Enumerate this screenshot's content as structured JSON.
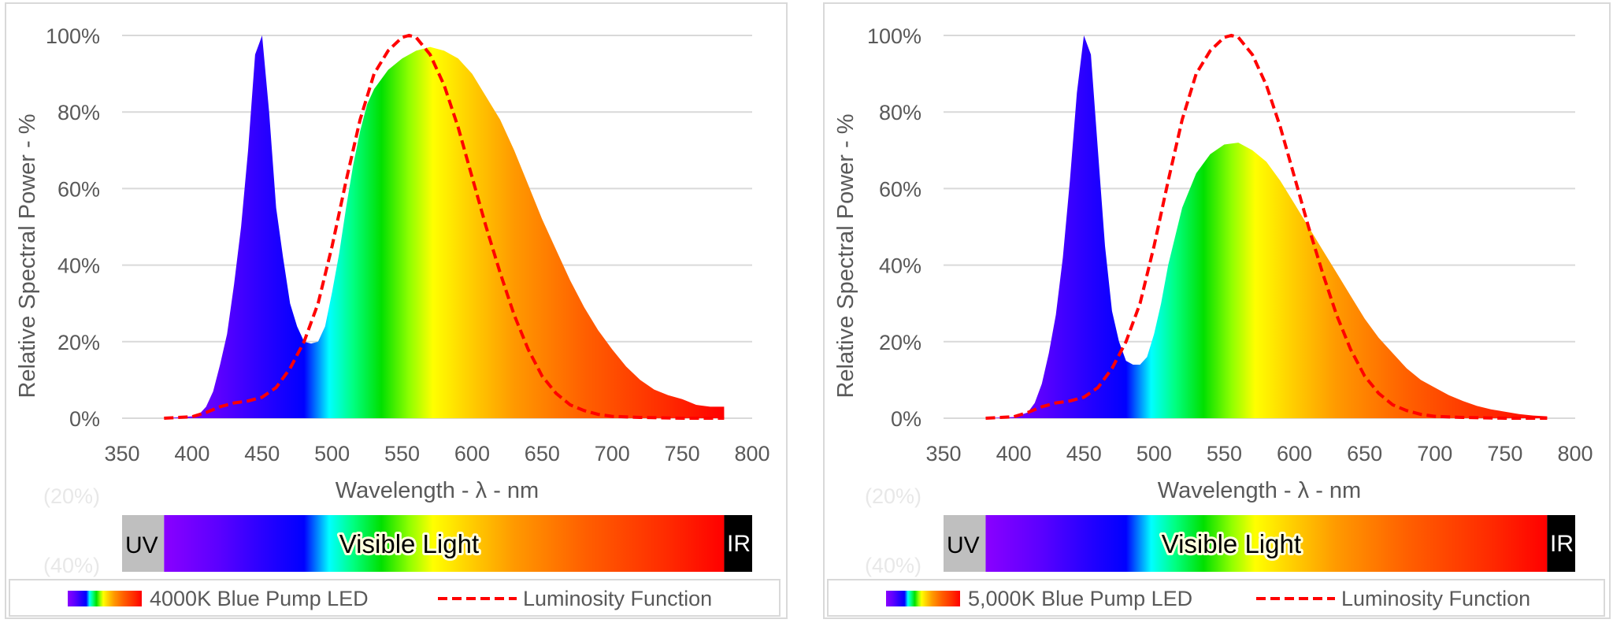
{
  "chart_data": [
    {
      "type": "area",
      "ylabel": "Relative Spectral Power - %",
      "xlabel": "Wavelength - λ - nm",
      "xlim": [
        350,
        800
      ],
      "ylim": [
        0,
        100
      ],
      "xticks": [
        "350",
        "400",
        "450",
        "500",
        "550",
        "600",
        "650",
        "700",
        "750",
        "800"
      ],
      "yticks": [
        "0%",
        "20%",
        "40%",
        "60%",
        "80%",
        "100%"
      ],
      "faded_yticks": [
        "(20%)",
        "(40%)"
      ],
      "grid": true,
      "legend_position": "bottom",
      "spectrum_bar": {
        "uv": "UV",
        "visible": "Visible Light",
        "ir": "IR"
      },
      "series": [
        {
          "name": "4000K Blue Pump LED",
          "style": "spectrum-fill",
          "x": [
            380,
            400,
            405,
            410,
            415,
            420,
            425,
            430,
            435,
            440,
            445,
            450,
            455,
            460,
            465,
            470,
            475,
            480,
            485,
            490,
            495,
            500,
            505,
            510,
            515,
            520,
            525,
            530,
            540,
            550,
            560,
            570,
            580,
            590,
            600,
            610,
            620,
            630,
            640,
            650,
            660,
            670,
            680,
            690,
            700,
            710,
            720,
            730,
            740,
            750,
            760,
            770,
            780
          ],
          "y": [
            0,
            0.5,
            1,
            3,
            7,
            14,
            22,
            35,
            50,
            70,
            95,
            100,
            80,
            55,
            42,
            30,
            24,
            20,
            19.5,
            20,
            24,
            33,
            43,
            55,
            66,
            75,
            82,
            86,
            91,
            94,
            96,
            97,
            96,
            94,
            90,
            84,
            78,
            70,
            61,
            52,
            44,
            36,
            29,
            23,
            18,
            13.5,
            10,
            7.5,
            6,
            5,
            3.5,
            3,
            3
          ]
        },
        {
          "name": "Luminosity Function",
          "style": "dashed",
          "color": "#ff0000",
          "x": [
            380,
            400,
            410,
            420,
            430,
            440,
            450,
            460,
            470,
            480,
            490,
            500,
            510,
            520,
            530,
            540,
            550,
            555,
            560,
            570,
            580,
            590,
            600,
            610,
            620,
            630,
            640,
            650,
            660,
            670,
            680,
            690,
            700,
            720,
            750,
            780
          ],
          "y": [
            0,
            0.4,
            1.5,
            3,
            4,
            4.5,
            5.5,
            8,
            13,
            20,
            30,
            45,
            62,
            78,
            90,
            96,
            99.5,
            100,
            99.5,
            95,
            87,
            76,
            63,
            50,
            38,
            27,
            18,
            11,
            6.5,
            3.5,
            2,
            1,
            0.5,
            0.2,
            0,
            0
          ]
        }
      ]
    },
    {
      "type": "area",
      "ylabel": "Relative Spectral Power - %",
      "xlabel": "Wavelength - λ - nm",
      "xlim": [
        350,
        800
      ],
      "ylim": [
        0,
        100
      ],
      "xticks": [
        "350",
        "400",
        "450",
        "500",
        "550",
        "600",
        "650",
        "700",
        "750",
        "800"
      ],
      "yticks": [
        "0%",
        "20%",
        "40%",
        "60%",
        "80%",
        "100%"
      ],
      "faded_yticks": [
        "(20%)",
        "(40%)"
      ],
      "grid": true,
      "legend_position": "bottom",
      "spectrum_bar": {
        "uv": "UV",
        "visible": "Visible Light",
        "ir": "IR"
      },
      "series": [
        {
          "name": "5,000K Blue Pump LED",
          "style": "spectrum-fill",
          "x": [
            380,
            400,
            410,
            415,
            420,
            425,
            430,
            435,
            440,
            445,
            450,
            455,
            460,
            465,
            470,
            475,
            480,
            485,
            490,
            495,
            500,
            505,
            510,
            520,
            530,
            540,
            550,
            560,
            570,
            580,
            590,
            600,
            610,
            620,
            630,
            640,
            650,
            660,
            670,
            680,
            690,
            700,
            710,
            720,
            730,
            740,
            750,
            760,
            770,
            780
          ],
          "y": [
            0,
            0.3,
            1.5,
            4,
            9,
            17,
            27,
            42,
            62,
            85,
            100,
            95,
            70,
            45,
            28,
            20,
            15,
            14,
            14,
            16,
            22,
            30,
            40,
            55,
            64,
            69,
            71.5,
            72,
            70,
            67,
            62,
            56,
            50,
            44,
            38,
            32,
            26,
            21,
            17,
            13,
            10,
            8,
            6,
            4.5,
            3.2,
            2.3,
            1.7,
            1.1,
            0.7,
            0.5
          ]
        },
        {
          "name": "Luminosity Function",
          "style": "dashed",
          "color": "#ff0000",
          "x": [
            380,
            400,
            410,
            420,
            430,
            440,
            450,
            460,
            470,
            480,
            490,
            500,
            510,
            520,
            530,
            540,
            550,
            555,
            560,
            570,
            580,
            590,
            600,
            610,
            620,
            630,
            640,
            650,
            660,
            670,
            680,
            690,
            700,
            720,
            750,
            780
          ],
          "y": [
            0,
            0.4,
            1.5,
            3,
            4,
            4.5,
            5.5,
            8,
            13,
            20,
            30,
            45,
            62,
            78,
            90,
            96,
            99.5,
            100,
            99.5,
            95,
            87,
            76,
            63,
            50,
            38,
            27,
            18,
            11,
            6.5,
            3.5,
            2,
            1,
            0.5,
            0.2,
            0,
            0
          ]
        }
      ]
    }
  ]
}
